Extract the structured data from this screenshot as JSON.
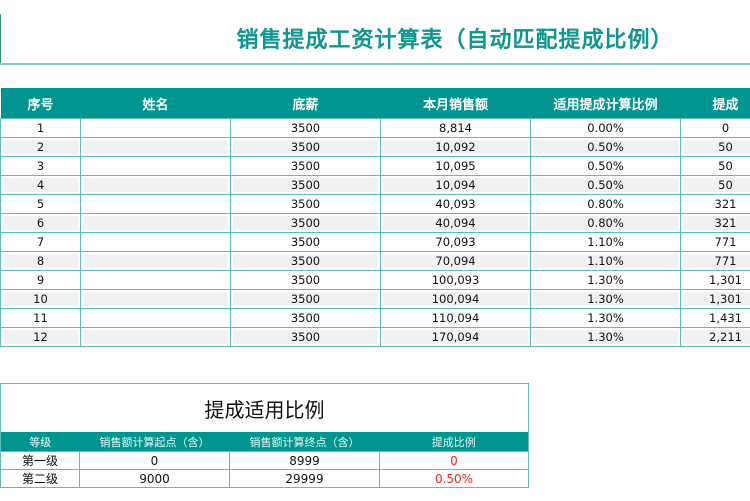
{
  "title": "销售提成工资计算表（自动匹配提成比例）",
  "columns": [
    "序号",
    "姓名",
    "底薪",
    "本月销售额",
    "适用提成计算比例",
    "提成"
  ],
  "rows": [
    [
      "1",
      "",
      "3500",
      "8,814",
      "0.00%",
      "0"
    ],
    [
      "2",
      "",
      "3500",
      "10,092",
      "0.50%",
      "50"
    ],
    [
      "3",
      "",
      "3500",
      "10,095",
      "0.50%",
      "50"
    ],
    [
      "4",
      "",
      "3500",
      "10,094",
      "0.50%",
      "50"
    ],
    [
      "5",
      "",
      "3500",
      "40,093",
      "0.80%",
      "321"
    ],
    [
      "6",
      "",
      "3500",
      "40,094",
      "0.80%",
      "321"
    ],
    [
      "7",
      "",
      "3500",
      "70,093",
      "1.10%",
      "771"
    ],
    [
      "8",
      "",
      "3500",
      "70,094",
      "1.10%",
      "771"
    ],
    [
      "9",
      "",
      "3500",
      "100,093",
      "1.30%",
      "1,301"
    ],
    [
      "10",
      "",
      "3500",
      "100,094",
      "1.30%",
      "1,301"
    ],
    [
      "11",
      "",
      "3500",
      "110,094",
      "1.30%",
      "1,431"
    ],
    [
      "12",
      "",
      "3500",
      "170,094",
      "1.30%",
      "2,211"
    ]
  ],
  "rate_table": {
    "title": "提成适用比例",
    "columns": [
      "等级",
      "销售额计算起点（含）",
      "销售额计算终点（含）",
      "提成比例"
    ],
    "rows": [
      [
        "第一级",
        "0",
        "8999",
        "0"
      ],
      [
        "第二级",
        "9000",
        "29999",
        "0.50%"
      ]
    ]
  },
  "colors": {
    "header": "#00968f",
    "title": "#0f9690",
    "border": "#5fbdb8",
    "rate_text": "#ff2020"
  }
}
